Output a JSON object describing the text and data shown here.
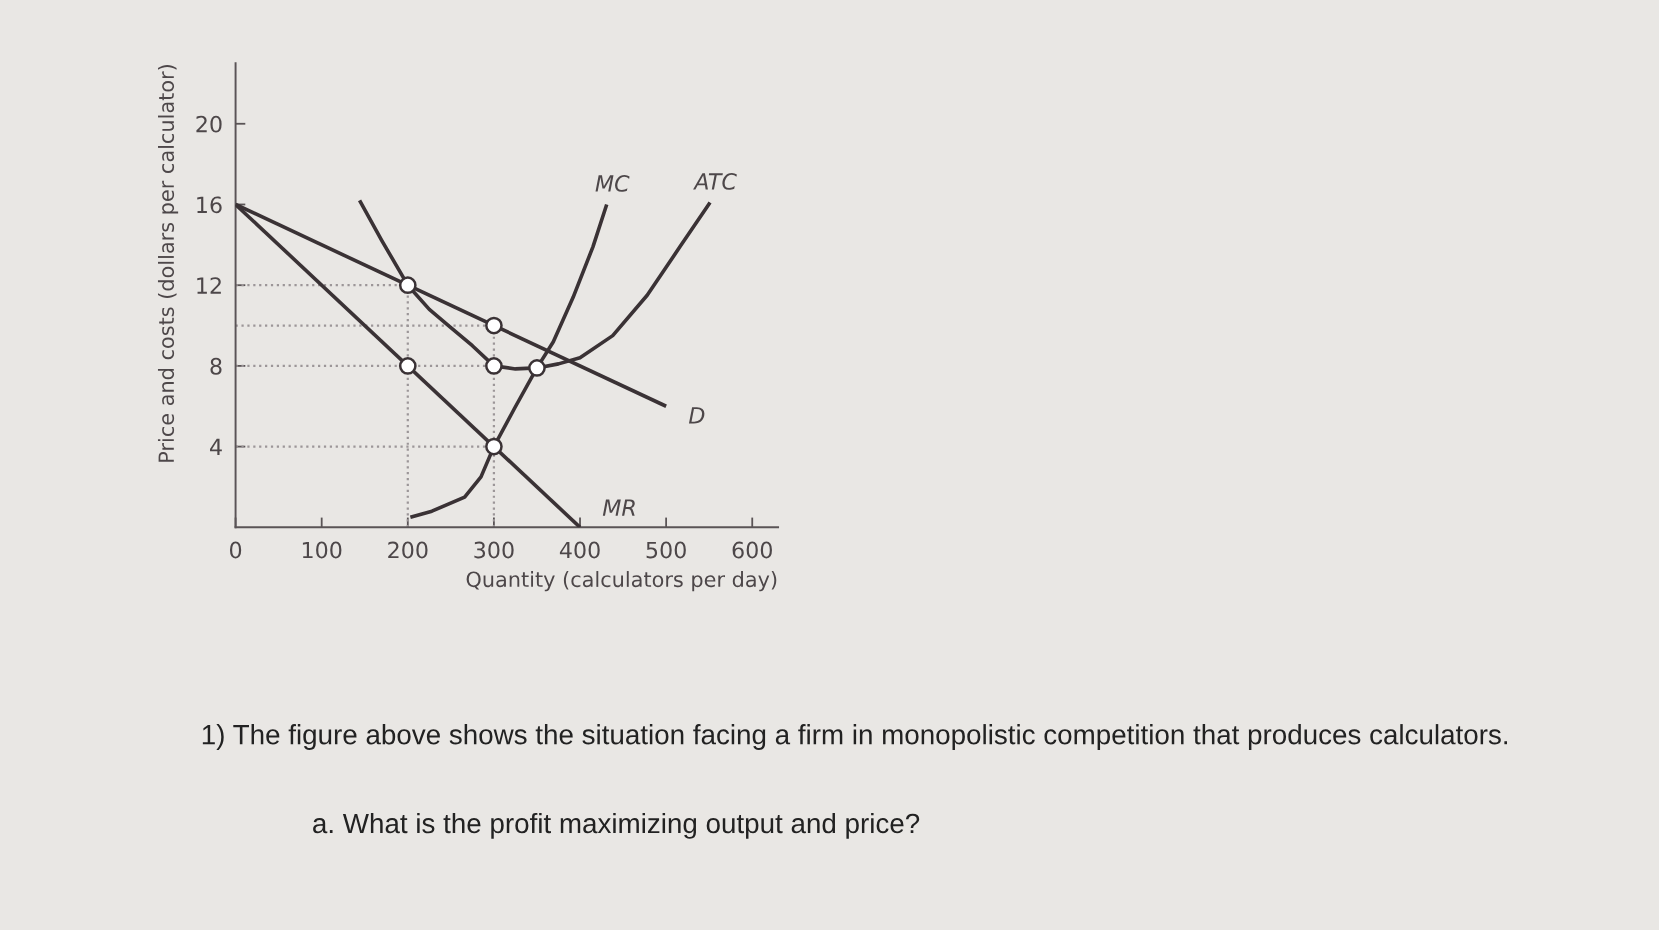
{
  "chart_data": {
    "type": "line",
    "xlabel": "Quantity (calculators per day)",
    "ylabel": "Price and costs (dollars per calculator)",
    "xlim": [
      0,
      630
    ],
    "ylim": [
      0,
      23
    ],
    "xticks": [
      0,
      100,
      200,
      300,
      400,
      500,
      600
    ],
    "yticks": [
      4,
      8,
      12,
      16,
      20
    ],
    "grid": false,
    "legend": false,
    "line_style": "solid",
    "marker": "none",
    "series": [
      {
        "type": "line",
        "line_style": "dotted",
        "color": "#9c9698",
        "x": [
          0,
          200
        ],
        "values": [
          12,
          12
        ]
      },
      {
        "type": "line",
        "line_style": "dotted",
        "color": "#9c9698",
        "x": [
          0,
          300
        ],
        "values": [
          10,
          10
        ]
      },
      {
        "type": "line",
        "line_style": "dotted",
        "color": "#9c9698",
        "x": [
          0,
          300
        ],
        "values": [
          8,
          8
        ]
      },
      {
        "type": "line",
        "line_style": "dotted",
        "color": "#9c9698",
        "x": [
          0,
          300
        ],
        "values": [
          4,
          4
        ]
      },
      {
        "type": "line",
        "line_style": "dotted",
        "color": "#9c9698",
        "x": [
          200,
          200
        ],
        "values": [
          0,
          12
        ]
      },
      {
        "type": "line",
        "line_style": "dotted",
        "color": "#9c9698",
        "x": [
          300,
          300
        ],
        "values": [
          0,
          10
        ]
      },
      {
        "name": "MC",
        "color": "#3a3235",
        "x": [
          203,
          228,
          266,
          285,
          300,
          324,
          350,
          369,
          392,
          415,
          431
        ],
        "values": [
          0.5,
          0.8,
          1.5,
          2.5,
          4,
          5.9,
          7.9,
          9.2,
          11.4,
          13.9,
          16
        ]
      },
      {
        "name": "ATC",
        "color": "#3a3235",
        "x": [
          144,
          170,
          200,
          225,
          250,
          275,
          300,
          325,
          350,
          375,
          400,
          438,
          478,
          516,
          551
        ],
        "values": [
          16.2,
          14.2,
          12,
          10.8,
          9.9,
          9,
          8,
          7.85,
          7.9,
          8.1,
          8.4,
          9.5,
          11.5,
          13.9,
          16.1
        ]
      },
      {
        "name": "D",
        "color": "#3a3235",
        "x": [
          0,
          500
        ],
        "values": [
          16,
          6
        ]
      },
      {
        "name": "MR",
        "color": "#3a3235",
        "x": [
          0,
          400
        ],
        "values": [
          16,
          0
        ]
      },
      {
        "type": "scatter",
        "marker": "circle",
        "color": "#3a3235",
        "x": [
          200,
          300,
          200,
          300,
          300,
          350
        ],
        "values": [
          12,
          10,
          8,
          4,
          8,
          7.9
        ]
      }
    ],
    "annotations": [
      "1) The figure above shows the situation facing a firm in monopolistic competition that produces calculators.",
      "a. What is the profit maximizing output and price?"
    ]
  }
}
